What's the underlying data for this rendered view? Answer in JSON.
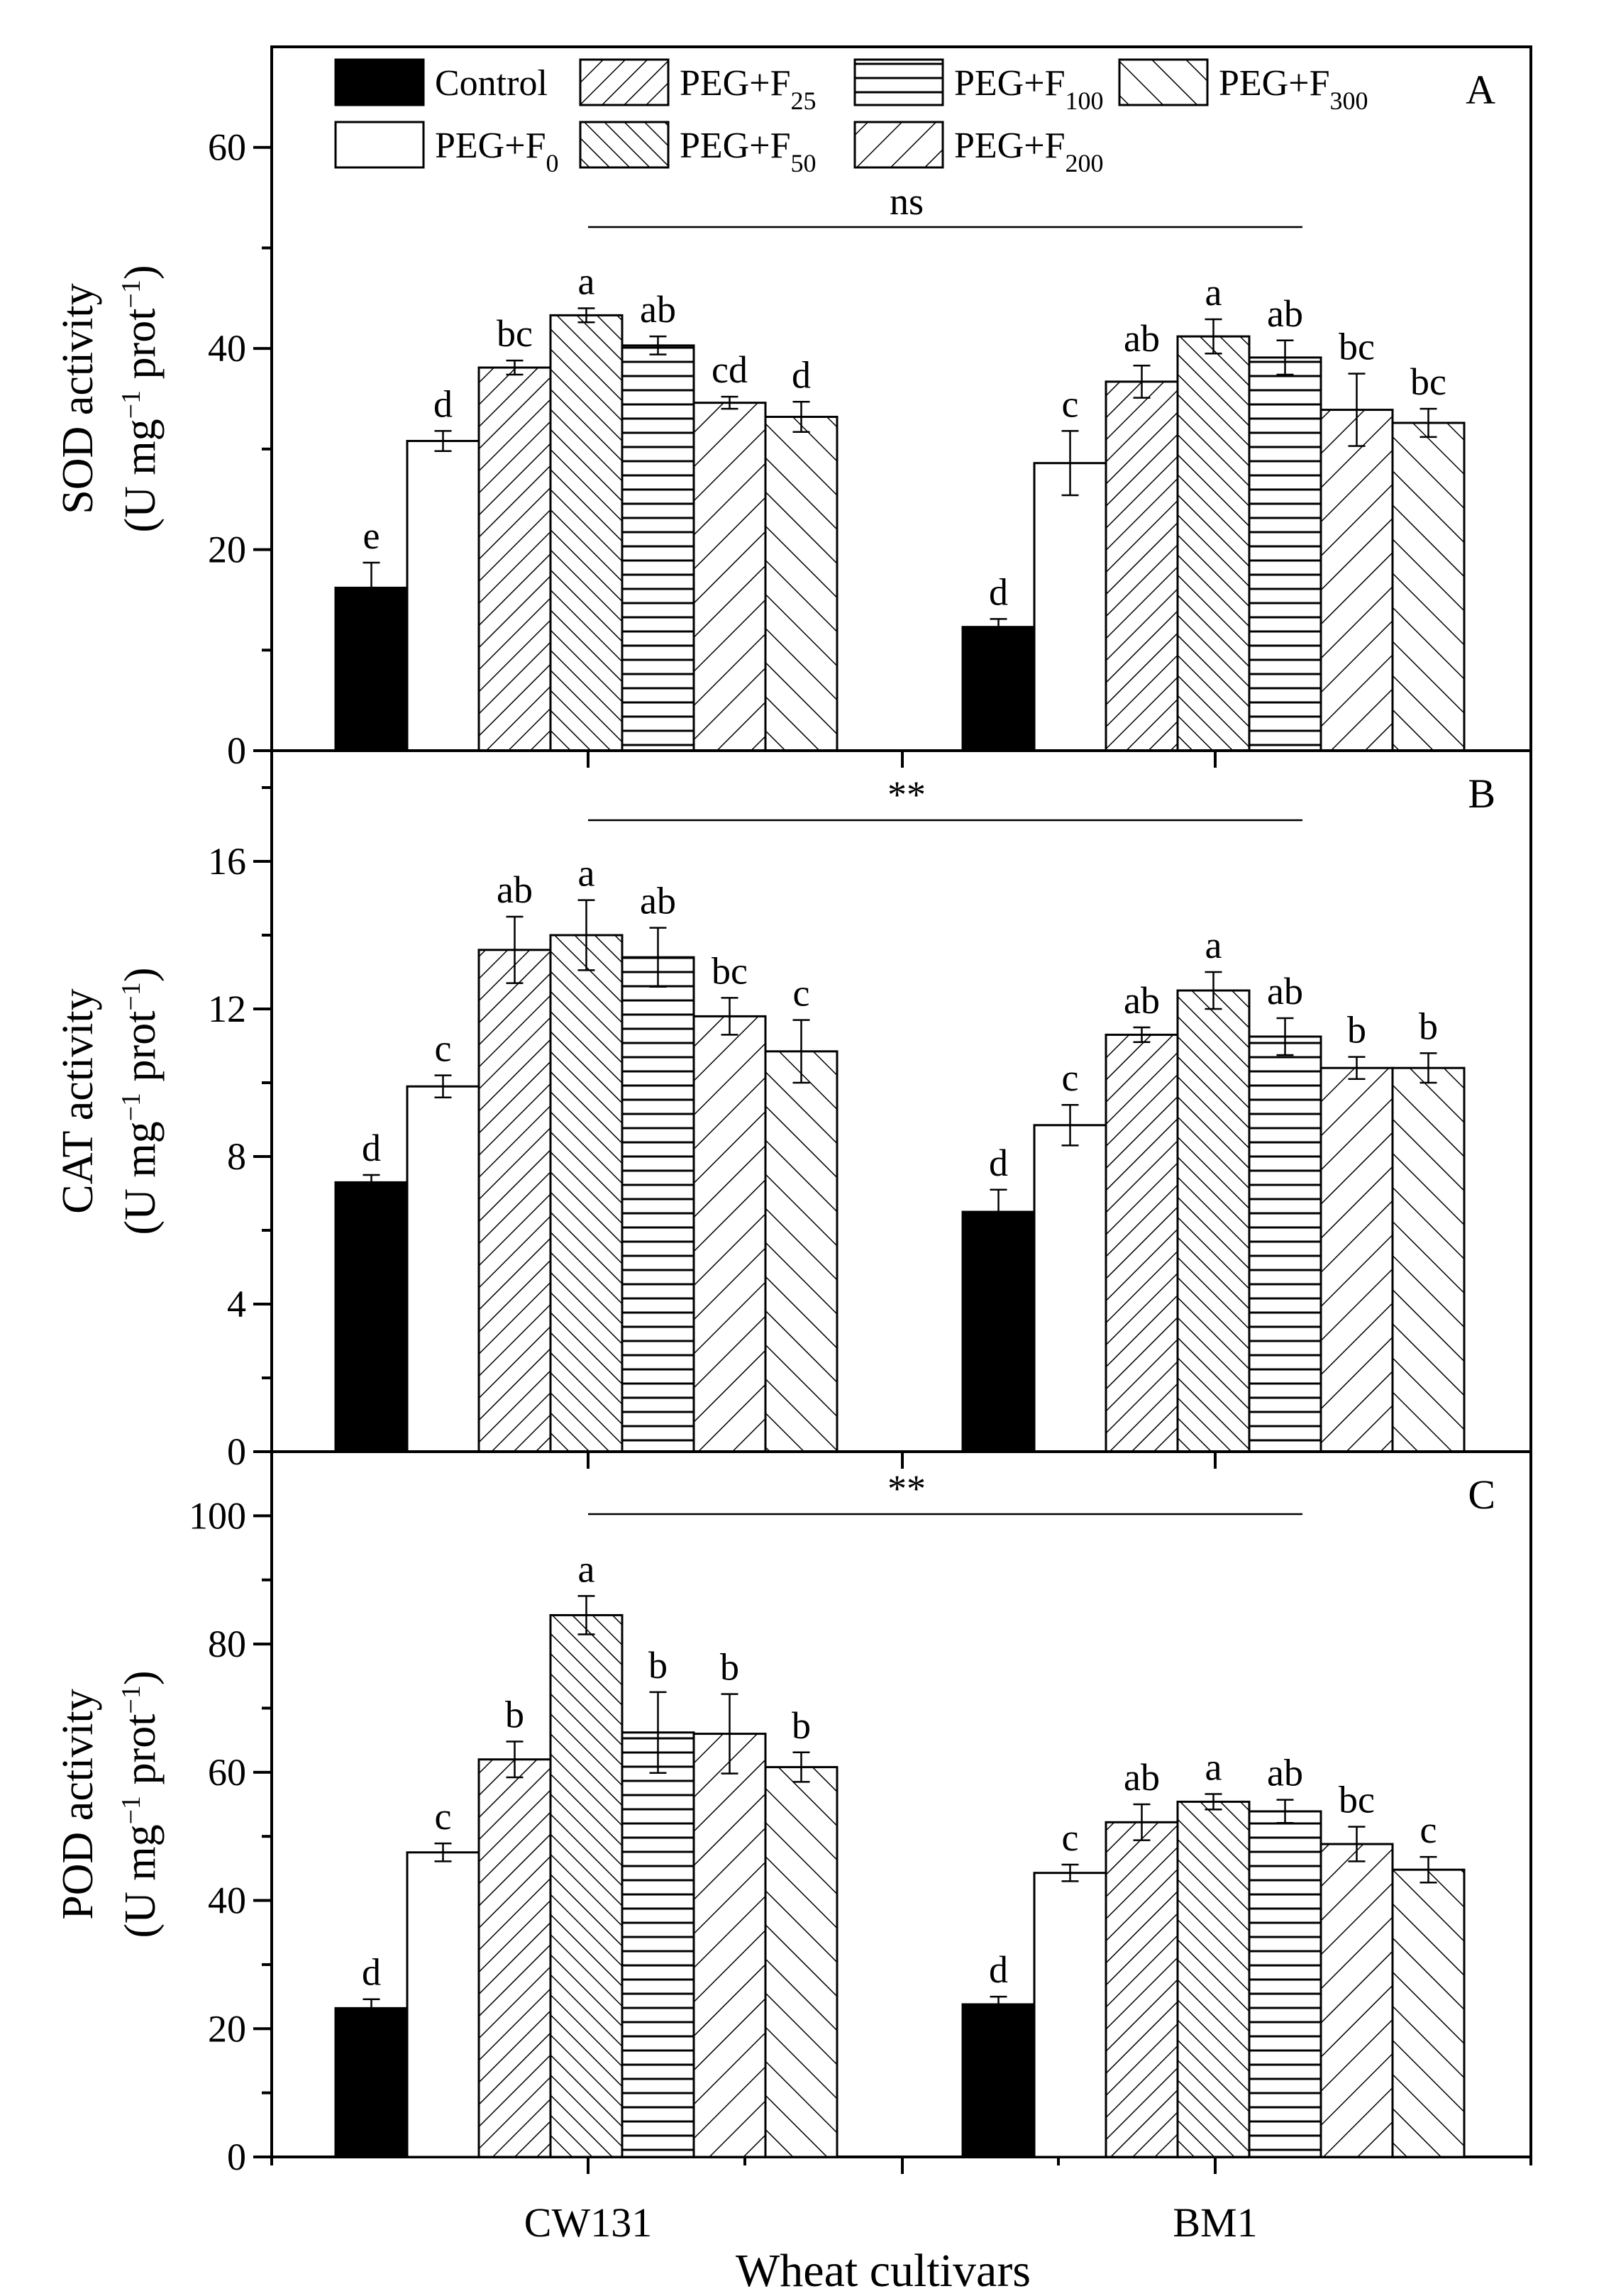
{
  "chart_data": [
    {
      "panel": "A",
      "type": "bar",
      "ylabel_line1": "SOD activity",
      "ylabel_line2": [
        "(U mg",
        "−1",
        " prot",
        "−1",
        ")"
      ],
      "ylim": [
        0,
        70
      ],
      "yticks": [
        0,
        20,
        40,
        60
      ],
      "yticks_minor": [
        10,
        30,
        50,
        70
      ],
      "significance": "ns",
      "categories": [
        "CW131",
        "BM1"
      ],
      "series": [
        {
          "name": "Control",
          "values": [
            16.2,
            12.3
          ],
          "errors": [
            2.5,
            0.8
          ],
          "letters": [
            "e",
            "d"
          ]
        },
        {
          "name": "PEG+F0",
          "values": [
            30.8,
            28.6
          ],
          "errors": [
            1.0,
            3.2
          ],
          "letters": [
            "d",
            "c"
          ]
        },
        {
          "name": "PEG+F25",
          "values": [
            38.1,
            36.7
          ],
          "errors": [
            0.7,
            1.6
          ],
          "letters": [
            "bc",
            "ab"
          ]
        },
        {
          "name": "PEG+F50",
          "values": [
            43.3,
            41.2
          ],
          "errors": [
            0.7,
            1.7
          ],
          "letters": [
            "a",
            "a"
          ]
        },
        {
          "name": "PEG+F100",
          "values": [
            40.3,
            39.1
          ],
          "errors": [
            0.9,
            1.7
          ],
          "letters": [
            "ab",
            "ab"
          ]
        },
        {
          "name": "PEG+F200",
          "values": [
            34.6,
            33.9
          ],
          "errors": [
            0.6,
            3.6
          ],
          "letters": [
            "cd",
            "bc"
          ]
        },
        {
          "name": "PEG+F300",
          "values": [
            33.2,
            32.6
          ],
          "errors": [
            1.5,
            1.4
          ],
          "letters": [
            "d",
            "bc"
          ]
        }
      ]
    },
    {
      "panel": "B",
      "type": "bar",
      "ylabel_line1": "CAT activity",
      "ylabel_line2": [
        "(U mg",
        "−1",
        " prot",
        "−1",
        ")"
      ],
      "ylim": [
        0,
        19
      ],
      "yticks": [
        0,
        4,
        8,
        12,
        16
      ],
      "yticks_minor": [
        2,
        6,
        10,
        14,
        18
      ],
      "significance": "**",
      "categories": [
        "CW131",
        "BM1"
      ],
      "series": [
        {
          "name": "Control",
          "values": [
            7.3,
            6.5
          ],
          "errors": [
            0.2,
            0.6
          ],
          "letters": [
            "d",
            "d"
          ]
        },
        {
          "name": "PEG+F0",
          "values": [
            9.9,
            8.85
          ],
          "errors": [
            0.3,
            0.55
          ],
          "letters": [
            "c",
            "c"
          ]
        },
        {
          "name": "PEG+F25",
          "values": [
            13.6,
            11.3
          ],
          "errors": [
            0.9,
            0.2
          ],
          "letters": [
            "ab",
            "ab"
          ]
        },
        {
          "name": "PEG+F50",
          "values": [
            14.0,
            12.5
          ],
          "errors": [
            0.95,
            0.5
          ],
          "letters": [
            "a",
            "a"
          ]
        },
        {
          "name": "PEG+F100",
          "values": [
            13.4,
            11.25
          ],
          "errors": [
            0.8,
            0.5
          ],
          "letters": [
            "ab",
            "ab"
          ]
        },
        {
          "name": "PEG+F200",
          "values": [
            11.8,
            10.4
          ],
          "errors": [
            0.5,
            0.3
          ],
          "letters": [
            "bc",
            "b"
          ]
        },
        {
          "name": "PEG+F300",
          "values": [
            10.85,
            10.4
          ],
          "errors": [
            0.85,
            0.4
          ],
          "letters": [
            "c",
            "b"
          ]
        }
      ]
    },
    {
      "panel": "C",
      "type": "bar",
      "ylabel_line1": "POD  activity",
      "ylabel_line2": [
        "(U mg",
        "−1",
        " prot",
        "−1",
        ")"
      ],
      "ylim": [
        0,
        110
      ],
      "yticks": [
        0,
        20,
        40,
        60,
        80,
        100
      ],
      "yticks_minor": [
        10,
        30,
        50,
        70,
        90,
        110
      ],
      "significance": "**",
      "categories": [
        "CW131",
        "BM1"
      ],
      "series": [
        {
          "name": "Control",
          "values": [
            23.2,
            23.8
          ],
          "errors": [
            1.4,
            1.2
          ],
          "letters": [
            "d",
            "d"
          ]
        },
        {
          "name": "PEG+F0",
          "values": [
            47.5,
            44.3
          ],
          "errors": [
            1.4,
            1.3
          ],
          "letters": [
            "c",
            "c"
          ]
        },
        {
          "name": "PEG+F25",
          "values": [
            62.0,
            52.2
          ],
          "errors": [
            2.8,
            2.8
          ],
          "letters": [
            "b",
            "ab"
          ]
        },
        {
          "name": "PEG+F50",
          "values": [
            84.5,
            55.4
          ],
          "errors": [
            3.0,
            1.2
          ],
          "letters": [
            "a",
            "a"
          ]
        },
        {
          "name": "PEG+F100",
          "values": [
            66.2,
            53.9
          ],
          "errors": [
            6.3,
            1.8
          ],
          "letters": [
            "b",
            "ab"
          ]
        },
        {
          "name": "PEG+F200",
          "values": [
            66.0,
            48.8
          ],
          "errors": [
            6.2,
            2.7
          ],
          "letters": [
            "b",
            "bc"
          ]
        },
        {
          "name": "PEG+F300",
          "values": [
            60.8,
            44.8
          ],
          "errors": [
            2.3,
            2.0
          ],
          "letters": [
            "b",
            "c"
          ]
        }
      ]
    }
  ],
  "legend": [
    {
      "base": "Control",
      "sub": ""
    },
    {
      "base": "PEG+F",
      "sub": "0"
    },
    {
      "base": "PEG+F",
      "sub": "25"
    },
    {
      "base": "PEG+F",
      "sub": "50"
    },
    {
      "base": "PEG+F",
      "sub": "100"
    },
    {
      "base": "PEG+F",
      "sub": "200"
    },
    {
      "base": "PEG+F",
      "sub": "300"
    }
  ],
  "patterns": [
    "solid-black",
    "white",
    "diag-right",
    "diag-left",
    "horizontal",
    "diag-right-wide",
    "diag-left-wide"
  ],
  "xlabel": "Wheat cultivars",
  "colors": {
    "bar_fill_dark": "#000000",
    "bar_fill_light": "#ffffff",
    "stroke": "#000000"
  }
}
